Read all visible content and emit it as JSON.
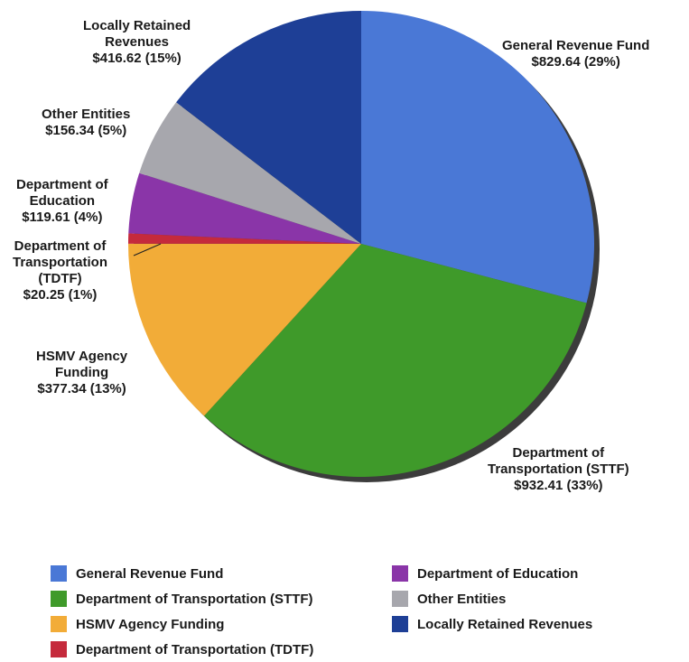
{
  "chart_data": {
    "type": "pie",
    "slices": [
      {
        "name": "General Revenue Fund",
        "label_lines": [
          "General Revenue Fund"
        ],
        "value": 829.64,
        "value_text": "$829.64 (29%)",
        "color": "#4a78d6"
      },
      {
        "name": "Department of Transportation (STTF)",
        "label_lines": [
          "Department of",
          "Transportation (STTF)"
        ],
        "value": 932.41,
        "value_text": "$932.41 (33%)",
        "color": "#3f9a2a"
      },
      {
        "name": "HSMV Agency Funding",
        "label_lines": [
          "HSMV Agency",
          "Funding"
        ],
        "value": 377.34,
        "value_text": "$377.34 (13%)",
        "color": "#f2ac38"
      },
      {
        "name": "Department of Transportation (TDTF)",
        "label_lines": [
          "Department of",
          "Transportation",
          "(TDTF)"
        ],
        "value": 20.25,
        "value_text": "$20.25 (1%)",
        "color": "#c52a3c"
      },
      {
        "name": "Department of Education",
        "label_lines": [
          "Department of",
          "Education"
        ],
        "value": 119.61,
        "value_text": "$119.61 (4%)",
        "color": "#8a35a8"
      },
      {
        "name": "Other Entities",
        "label_lines": [
          "Other Entities"
        ],
        "value": 156.34,
        "value_text": "$156.34 (5%)",
        "color": "#a7a7ad"
      },
      {
        "name": "Locally Retained Revenues",
        "label_lines": [
          "Locally Retained",
          "Revenues"
        ],
        "value": 416.62,
        "value_text": "$416.62 (15%)",
        "color": "#1e3f96"
      }
    ],
    "legend": {
      "placement": "bottom",
      "columns": [
        [
          "General Revenue Fund",
          "Department of Transportation (STTF)",
          "HSMV Agency Funding",
          "Department of Transportation (TDTF)"
        ],
        [
          "Department of Education",
          "Other Entities",
          "Locally Retained Revenues"
        ]
      ]
    }
  }
}
